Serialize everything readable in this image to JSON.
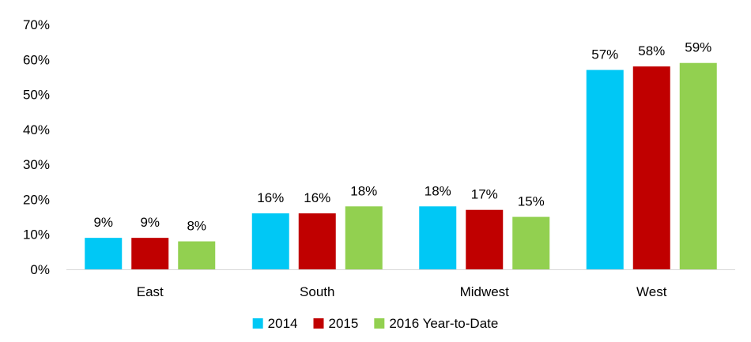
{
  "chart_data": {
    "type": "bar",
    "title": "",
    "xlabel": "",
    "ylabel": "",
    "categories": [
      "East",
      "South",
      "Midwest",
      "West"
    ],
    "ylim": [
      0,
      70
    ],
    "yticks": [
      0,
      10,
      20,
      30,
      40,
      50,
      60,
      70
    ],
    "ytick_suffix": "%",
    "grid": false,
    "legend_position": "bottom",
    "series": [
      {
        "name": "2014",
        "color": "#00C8F5",
        "values": [
          9,
          16,
          18,
          57
        ]
      },
      {
        "name": "2015",
        "color": "#C00000",
        "values": [
          9,
          16,
          17,
          58
        ]
      },
      {
        "name": "2016 Year-to-Date",
        "color": "#92D050",
        "values": [
          8,
          18,
          15,
          59
        ]
      }
    ]
  }
}
